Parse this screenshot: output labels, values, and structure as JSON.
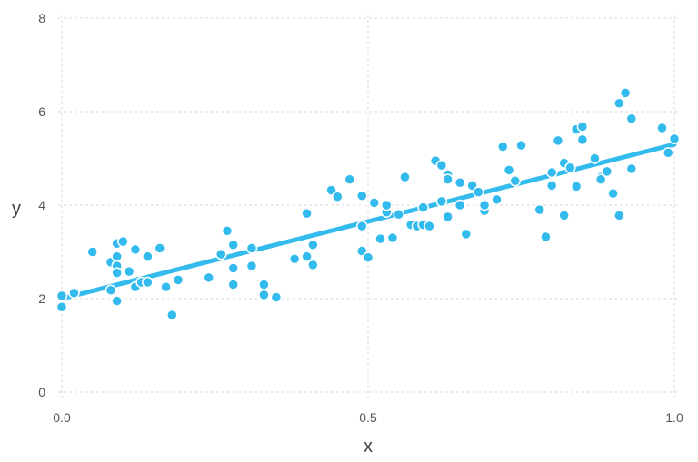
{
  "chart_data": {
    "type": "scatter",
    "title": "",
    "xlabel": "x",
    "ylabel": "y",
    "xlim": [
      0,
      1
    ],
    "ylim": [
      0,
      8
    ],
    "x_ticks": [
      0.0,
      0.5,
      1.0
    ],
    "x_tick_labels": [
      "0.0",
      "0.5",
      "1.0"
    ],
    "y_ticks": [
      0,
      2,
      4,
      6,
      8
    ],
    "y_tick_labels": [
      "0",
      "2",
      "4",
      "6",
      "8"
    ],
    "grid": true,
    "legend": "none",
    "colors": {
      "points": "#33bbee",
      "point_edge": "#ffffff",
      "line": "#33bbee"
    },
    "series": [
      {
        "type": "scatter",
        "points": [
          [
            0.0,
            1.82
          ],
          [
            0.0,
            2.06
          ],
          [
            0.02,
            2.12
          ],
          [
            0.05,
            3.0
          ],
          [
            0.08,
            2.18
          ],
          [
            0.08,
            2.78
          ],
          [
            0.09,
            2.9
          ],
          [
            0.09,
            3.18
          ],
          [
            0.09,
            2.7
          ],
          [
            0.09,
            2.55
          ],
          [
            0.09,
            1.95
          ],
          [
            0.1,
            3.22
          ],
          [
            0.11,
            2.58
          ],
          [
            0.12,
            3.05
          ],
          [
            0.12,
            2.25
          ],
          [
            0.13,
            2.35
          ],
          [
            0.14,
            2.35
          ],
          [
            0.14,
            2.9
          ],
          [
            0.16,
            3.08
          ],
          [
            0.17,
            2.25
          ],
          [
            0.18,
            1.65
          ],
          [
            0.19,
            2.4
          ],
          [
            0.24,
            2.45
          ],
          [
            0.26,
            2.95
          ],
          [
            0.27,
            3.45
          ],
          [
            0.28,
            3.15
          ],
          [
            0.28,
            2.3
          ],
          [
            0.28,
            2.65
          ],
          [
            0.31,
            2.7
          ],
          [
            0.31,
            3.08
          ],
          [
            0.33,
            2.3
          ],
          [
            0.33,
            2.08
          ],
          [
            0.35,
            2.03
          ],
          [
            0.38,
            2.85
          ],
          [
            0.4,
            3.82
          ],
          [
            0.4,
            2.9
          ],
          [
            0.41,
            2.72
          ],
          [
            0.41,
            3.15
          ],
          [
            0.44,
            4.32
          ],
          [
            0.45,
            4.18
          ],
          [
            0.47,
            4.55
          ],
          [
            0.49,
            4.2
          ],
          [
            0.49,
            3.55
          ],
          [
            0.49,
            3.02
          ],
          [
            0.5,
            2.88
          ],
          [
            0.51,
            4.05
          ],
          [
            0.52,
            3.28
          ],
          [
            0.53,
            3.85
          ],
          [
            0.53,
            4.0
          ],
          [
            0.54,
            3.3
          ],
          [
            0.55,
            3.8
          ],
          [
            0.56,
            4.6
          ],
          [
            0.57,
            3.58
          ],
          [
            0.58,
            3.55
          ],
          [
            0.59,
            3.95
          ],
          [
            0.59,
            3.58
          ],
          [
            0.6,
            3.55
          ],
          [
            0.61,
            4.95
          ],
          [
            0.62,
            4.85
          ],
          [
            0.62,
            4.08
          ],
          [
            0.63,
            4.65
          ],
          [
            0.63,
            4.55
          ],
          [
            0.63,
            3.75
          ],
          [
            0.65,
            4.0
          ],
          [
            0.65,
            4.48
          ],
          [
            0.66,
            3.38
          ],
          [
            0.67,
            4.42
          ],
          [
            0.68,
            4.28
          ],
          [
            0.69,
            3.88
          ],
          [
            0.69,
            4.0
          ],
          [
            0.71,
            4.12
          ],
          [
            0.72,
            5.25
          ],
          [
            0.73,
            4.75
          ],
          [
            0.74,
            4.52
          ],
          [
            0.75,
            5.28
          ],
          [
            0.78,
            3.9
          ],
          [
            0.79,
            3.32
          ],
          [
            0.8,
            4.7
          ],
          [
            0.8,
            4.42
          ],
          [
            0.81,
            5.38
          ],
          [
            0.82,
            3.78
          ],
          [
            0.82,
            4.9
          ],
          [
            0.83,
            4.8
          ],
          [
            0.84,
            4.4
          ],
          [
            0.84,
            5.62
          ],
          [
            0.85,
            5.68
          ],
          [
            0.85,
            5.4
          ],
          [
            0.87,
            5.0
          ],
          [
            0.88,
            4.6
          ],
          [
            0.88,
            4.55
          ],
          [
            0.89,
            4.72
          ],
          [
            0.9,
            4.25
          ],
          [
            0.91,
            6.18
          ],
          [
            0.91,
            3.78
          ],
          [
            0.92,
            6.4
          ],
          [
            0.93,
            5.85
          ],
          [
            0.93,
            4.78
          ],
          [
            0.98,
            5.65
          ],
          [
            0.99,
            5.12
          ],
          [
            1.0,
            5.42
          ]
        ]
      },
      {
        "type": "line",
        "points": [
          [
            0.0,
            2.0
          ],
          [
            1.0,
            5.3
          ]
        ]
      }
    ]
  }
}
